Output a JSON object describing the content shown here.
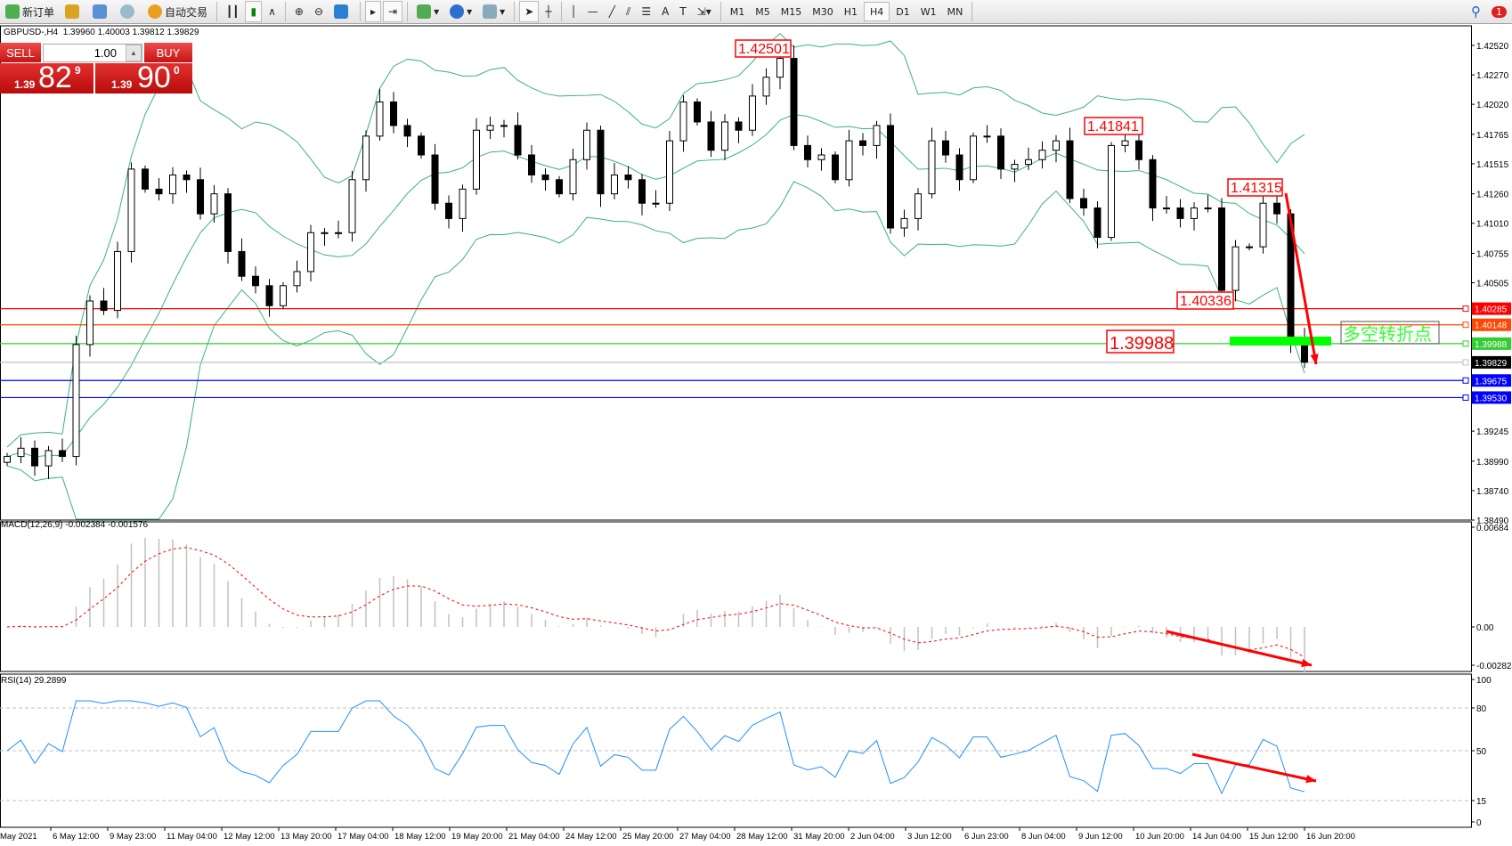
{
  "toolbar": {
    "new_order": "新订单",
    "auto_trading": "自动交易",
    "timeframes": [
      "M1",
      "M5",
      "M15",
      "M30",
      "H1",
      "H4",
      "D1",
      "W1",
      "MN"
    ],
    "active_timeframe": "H4",
    "notifications": "1"
  },
  "header": {
    "symbol": "GBPUSD-,H4",
    "ohlc": "1.39960 1.40003 1.39812 1.39829"
  },
  "trade_panel": {
    "sell": "SELL",
    "buy": "BUY",
    "lot": "1.00",
    "sell_prefix": "1.39",
    "sell_big": "82",
    "sell_pip": "9",
    "buy_prefix": "1.39",
    "buy_big": "90",
    "buy_pip": "0"
  },
  "chart_data": {
    "type": "candlestick",
    "symbol": "GBPUSD",
    "timeframe": "H4",
    "ylim": [
      1.3849,
      1.4252
    ],
    "price_ticks": [
      "1.42520",
      "1.42270",
      "1.42020",
      "1.41765",
      "1.41515",
      "1.41260",
      "1.41010",
      "1.40755",
      "1.40505",
      "1.39245",
      "1.38990",
      "1.38740",
      "1.38490"
    ],
    "closes": [
      1.3903,
      1.391,
      1.3895,
      1.3908,
      1.3903,
      1.3998,
      1.4035,
      1.4027,
      1.4077,
      1.4147,
      1.413,
      1.4126,
      1.4142,
      1.4138,
      1.4109,
      1.4126,
      1.4077,
      1.4056,
      1.4048,
      1.4031,
      1.4048,
      1.406,
      1.4093,
      1.4093,
      1.4093,
      1.4138,
      1.4175,
      1.4204,
      1.4184,
      1.4175,
      1.4159,
      1.4118,
      1.4105,
      1.413,
      1.418,
      1.4184,
      1.4184,
      1.4159,
      1.4142,
      1.4138,
      1.4126,
      1.4155,
      1.418,
      1.4126,
      1.4142,
      1.4138,
      1.4118,
      1.4118,
      1.4171,
      1.4204,
      1.4187,
      1.4163,
      1.4187,
      1.418,
      1.4209,
      1.4225,
      1.4241,
      1.4167,
      1.4155,
      1.4159,
      1.4138,
      1.4171,
      1.4167,
      1.4184,
      1.4097,
      1.4105,
      1.4126,
      1.4171,
      1.4159,
      1.4138,
      1.4175,
      1.4175,
      1.4147,
      1.4151,
      1.4155,
      1.4163,
      1.4171,
      1.4122,
      1.4114,
      1.4089,
      1.4167,
      1.4171,
      1.4155,
      1.4114,
      1.4114,
      1.4105,
      1.4114,
      1.4114,
      1.4044,
      1.4081,
      1.4081,
      1.4118,
      1.4109,
      1.4002,
      1.3983
    ],
    "x_labels": [
      "May 2021",
      "6 May 12:00",
      "9 May 23:00",
      "11 May 04:00",
      "12 May 12:00",
      "13 May 20:00",
      "17 May 04:00",
      "18 May 12:00",
      "19 May 20:00",
      "21 May 04:00",
      "24 May 12:00",
      "25 May 20:00",
      "27 May 04:00",
      "28 May 12:00",
      "31 May 20:00",
      "2 Jun 04:00",
      "3 Jun 12:00",
      "6 Jun 23:00",
      "8 Jun 04:00",
      "9 Jun 12:00",
      "10 Jun 20:00",
      "14 Jun 04:00",
      "15 Jun 12:00",
      "16 Jun 20:00"
    ],
    "levels": [
      {
        "price": 1.40285,
        "label": "1.40285",
        "color": "#ff0000"
      },
      {
        "price": 1.40148,
        "label": "1.40148",
        "color": "#ff4500"
      },
      {
        "price": 1.39988,
        "label": "1.39988",
        "color": "#32cd32"
      },
      {
        "price": 1.39829,
        "label": "1.39829",
        "color": "#000000",
        "line": "#c0c0c0"
      },
      {
        "price": 1.39675,
        "label": "1.39675",
        "color": "#0000ff"
      },
      {
        "price": 1.3953,
        "label": "1.39530",
        "color": "#0000ff"
      }
    ],
    "hidden_ticks": [
      "1.40235",
      "1.39750",
      "1.39495"
    ],
    "price_labels": [
      "1.42501",
      "1.41841",
      "1.41315",
      "1.40336",
      "1.39988"
    ],
    "annotation": "多空转折点",
    "indicator": "Bollinger Bands",
    "macd": {
      "title": "MACD(12,26,9) -0.002384 -0.001576",
      "ticks": [
        "0.00684",
        "0.00",
        "-0.002824"
      ]
    },
    "rsi": {
      "title": "RSI(14) 29.2899",
      "ticks": [
        "100",
        "80",
        "50",
        "15",
        "0"
      ],
      "levels": [
        80,
        50,
        15
      ]
    },
    "colors": {
      "bands": "#3cb371",
      "macd_signal": "#ff0000",
      "macd_hist": "#c0c0c0",
      "rsi": "#1e90ff",
      "arrows": "#ff0000"
    }
  }
}
